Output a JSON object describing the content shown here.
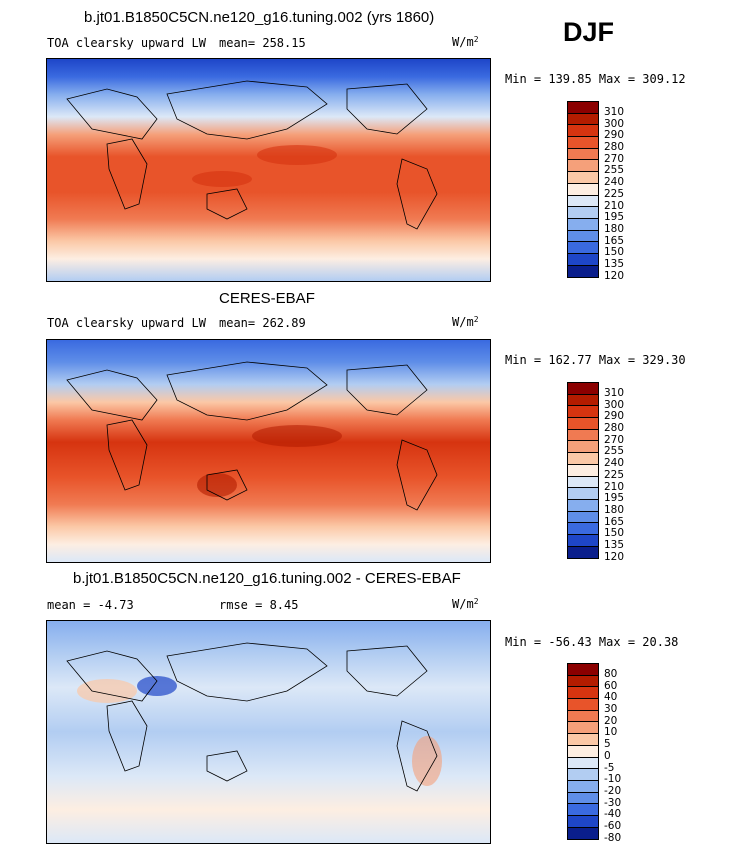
{
  "season": "DJF",
  "panels": [
    {
      "title": "b.jt01.B1850C5CN.ne120_g16.tuning.002 (yrs 1860)",
      "variable": "TOA clearsky upward LW",
      "stat1": "mean=  258.15",
      "stat2": "",
      "units": "W/m",
      "units_exp": "2",
      "minmax": "Min = 139.85 Max = 309.12",
      "levels": [
        "310",
        "300",
        "290",
        "280",
        "270",
        "255",
        "240",
        "225",
        "210",
        "195",
        "180",
        "165",
        "150",
        "135",
        "120"
      ]
    },
    {
      "title": "CERES-EBAF",
      "variable": "TOA clearsky upward LW",
      "stat1": "mean=  262.89",
      "stat2": "",
      "units": "W/m",
      "units_exp": "2",
      "minmax": "Min = 162.77 Max = 329.30",
      "levels": [
        "310",
        "300",
        "290",
        "280",
        "270",
        "255",
        "240",
        "225",
        "210",
        "195",
        "180",
        "165",
        "150",
        "135",
        "120"
      ]
    },
    {
      "title": "b.jt01.B1850C5CN.ne120_g16.tuning.002 - CERES-EBAF",
      "variable": "",
      "stat1": "mean =   -4.73",
      "stat2": "rmse =   8.45",
      "units": "W/m",
      "units_exp": "2",
      "minmax": "Min = -56.43 Max =  20.38",
      "levels": [
        "80",
        "60",
        "40",
        "30",
        "20",
        "10",
        "5",
        "0",
        "-5",
        "-10",
        "-20",
        "-30",
        "-40",
        "-60",
        "-80"
      ]
    }
  ],
  "colors": [
    "#8b0000",
    "#b31c00",
    "#d63410",
    "#e8542a",
    "#f07a52",
    "#f5a07a",
    "#fbc8a6",
    "#fdeee2",
    "#dce8f7",
    "#b2cdf2",
    "#86aeee",
    "#5f8ee8",
    "#3a6ae0",
    "#1e46c8",
    "#0a1e8c"
  ]
}
